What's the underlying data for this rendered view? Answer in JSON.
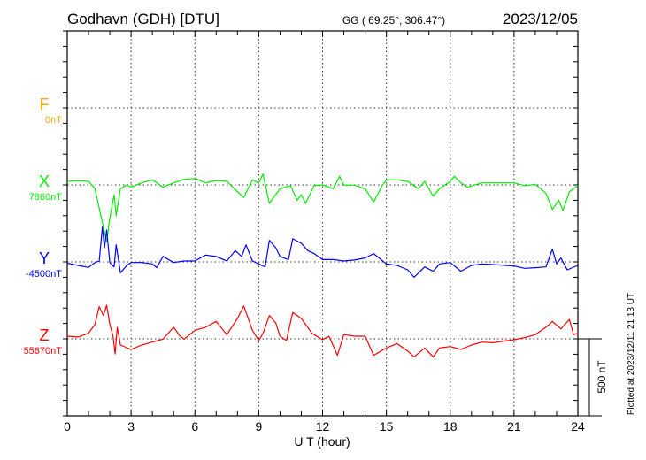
{
  "header": {
    "station": "Godhavn (GDH)  [DTU]",
    "coords": "GG ( 69.25°, 306.47°)",
    "date": "2023/12/05"
  },
  "footer": {
    "plotted": "Plotted at 2023/12/11 21:13 UT",
    "scale_label": "500 nT"
  },
  "chart_data": {
    "type": "line",
    "title": "Godhavn (GDH) [DTU] 2023/12/05",
    "xlabel": "U T (hour)",
    "xlim": [
      0,
      24
    ],
    "xticks": [
      "0",
      "3",
      "6",
      "9",
      "12",
      "15",
      "18",
      "21",
      "24"
    ],
    "grid": true,
    "nT_per_tick": 100,
    "scale_bar_nT": 500,
    "series": [
      {
        "name": "F",
        "baseline_label": "0nT",
        "color": "#ffaa00",
        "points": []
      },
      {
        "name": "X",
        "baseline_label": "7860nT",
        "color": "#00ee00",
        "points": [
          [
            0,
            23
          ],
          [
            0.5,
            27
          ],
          [
            1,
            23
          ],
          [
            1.3,
            -25
          ],
          [
            1.5,
            -150
          ],
          [
            1.7,
            -275
          ],
          [
            1.85,
            -370
          ],
          [
            2,
            -215
          ],
          [
            2.2,
            -63
          ],
          [
            2.3,
            -200
          ],
          [
            2.5,
            -25
          ],
          [
            2.8,
            0
          ],
          [
            3,
            -15
          ],
          [
            3.5,
            13
          ],
          [
            4,
            33
          ],
          [
            4.5,
            -15
          ],
          [
            5,
            13
          ],
          [
            5.5,
            36
          ],
          [
            6,
            42
          ],
          [
            6.5,
            13
          ],
          [
            7,
            29
          ],
          [
            7.5,
            23
          ],
          [
            8,
            -44
          ],
          [
            8.3,
            -82
          ],
          [
            8.7,
            33
          ],
          [
            9,
            13
          ],
          [
            9.2,
            71
          ],
          [
            9.5,
            -120
          ],
          [
            10,
            -25
          ],
          [
            10.5,
            -5
          ],
          [
            10.8,
            -100
          ],
          [
            11,
            -63
          ],
          [
            11.2,
            -120
          ],
          [
            11.6,
            -5
          ],
          [
            12,
            0
          ],
          [
            12.5,
            -25
          ],
          [
            12.8,
            56
          ],
          [
            13,
            -2
          ],
          [
            13.5,
            -2
          ],
          [
            14,
            -25
          ],
          [
            14.4,
            -111
          ],
          [
            14.8,
            -5
          ],
          [
            15,
            33
          ],
          [
            15.5,
            33
          ],
          [
            16,
            23
          ],
          [
            16.5,
            -25
          ],
          [
            16.8,
            23
          ],
          [
            17.2,
            -73
          ],
          [
            17.5,
            -25
          ],
          [
            18,
            23
          ],
          [
            18.2,
            56
          ],
          [
            18.5,
            13
          ],
          [
            18.8,
            -15
          ],
          [
            19.5,
            13
          ],
          [
            20,
            13
          ],
          [
            21,
            13
          ],
          [
            21.5,
            -5
          ],
          [
            22,
            4
          ],
          [
            22.5,
            -54
          ],
          [
            22.8,
            -160
          ],
          [
            23.1,
            -100
          ],
          [
            23.3,
            -167
          ],
          [
            23.6,
            -44
          ],
          [
            24,
            -5
          ]
        ]
      },
      {
        "name": "Y",
        "baseline_label": "-4500nT",
        "color": "#0000ff",
        "points": [
          [
            0,
            -8
          ],
          [
            0.5,
            -23
          ],
          [
            1,
            -36
          ],
          [
            1.3,
            -4
          ],
          [
            1.5,
            6
          ],
          [
            1.65,
            226
          ],
          [
            1.75,
            92
          ],
          [
            1.85,
            207
          ],
          [
            2,
            -4
          ],
          [
            2.2,
            -33
          ],
          [
            2.3,
            111
          ],
          [
            2.5,
            -71
          ],
          [
            2.8,
            -23
          ],
          [
            3,
            -4
          ],
          [
            3.5,
            -4
          ],
          [
            4,
            -13
          ],
          [
            4.2,
            -38
          ],
          [
            4.5,
            35
          ],
          [
            5,
            -4
          ],
          [
            5.5,
            6
          ],
          [
            6,
            6
          ],
          [
            6.5,
            44
          ],
          [
            7,
            35
          ],
          [
            7.5,
            6
          ],
          [
            7.9,
            73
          ],
          [
            8.2,
            35
          ],
          [
            8.4,
            111
          ],
          [
            8.7,
            6
          ],
          [
            9,
            -13
          ],
          [
            9.3,
            -33
          ],
          [
            9.5,
            140
          ],
          [
            9.8,
            92
          ],
          [
            10,
            35
          ],
          [
            10.4,
            15
          ],
          [
            10.6,
            150
          ],
          [
            11,
            121
          ],
          [
            11.3,
            73
          ],
          [
            11.6,
            54
          ],
          [
            12,
            15
          ],
          [
            12.5,
            15
          ],
          [
            13,
            6
          ],
          [
            13.5,
            12
          ],
          [
            14,
            25
          ],
          [
            14.4,
            54
          ],
          [
            15,
            -13
          ],
          [
            15.5,
            -23
          ],
          [
            16,
            -52
          ],
          [
            16.3,
            -100
          ],
          [
            16.8,
            -33
          ],
          [
            17.2,
            -61
          ],
          [
            17.5,
            -13
          ],
          [
            18,
            -4
          ],
          [
            18.5,
            -61
          ],
          [
            19,
            -23
          ],
          [
            19.5,
            -13
          ],
          [
            20,
            -17
          ],
          [
            21,
            -27
          ],
          [
            21.5,
            -42
          ],
          [
            22,
            -38
          ],
          [
            22.5,
            -33
          ],
          [
            22.8,
            82
          ],
          [
            23,
            -13
          ],
          [
            23.2,
            25
          ],
          [
            23.5,
            -52
          ],
          [
            24,
            -23
          ]
        ]
      },
      {
        "name": "Z",
        "baseline_label": "55670nT",
        "color": "#ff0000",
        "points": [
          [
            0,
            17
          ],
          [
            0.5,
            12
          ],
          [
            1,
            36
          ],
          [
            1.3,
            94
          ],
          [
            1.5,
            209
          ],
          [
            1.7,
            151
          ],
          [
            1.85,
            219
          ],
          [
            2,
            94
          ],
          [
            2.15,
            17
          ],
          [
            2.25,
            -98
          ],
          [
            2.35,
            75
          ],
          [
            2.5,
            -40
          ],
          [
            3,
            -69
          ],
          [
            3.5,
            -40
          ],
          [
            4,
            -21
          ],
          [
            4.5,
            -2
          ],
          [
            5,
            75
          ],
          [
            5.3,
            17
          ],
          [
            5.5,
            -2
          ],
          [
            6,
            56
          ],
          [
            6.5,
            75
          ],
          [
            7,
            113
          ],
          [
            7.5,
            27
          ],
          [
            8,
            132
          ],
          [
            8.3,
            213
          ],
          [
            8.7,
            56
          ],
          [
            9,
            -11
          ],
          [
            9.2,
            36
          ],
          [
            9.5,
            151
          ],
          [
            9.8,
            104
          ],
          [
            10,
            17
          ],
          [
            10.3,
            -11
          ],
          [
            10.6,
            171
          ],
          [
            11,
            132
          ],
          [
            11.5,
            36
          ],
          [
            12,
            -6
          ],
          [
            12.3,
            17
          ],
          [
            12.7,
            -107
          ],
          [
            13,
            27
          ],
          [
            13.5,
            17
          ],
          [
            14,
            17
          ],
          [
            14.4,
            -107
          ],
          [
            15,
            -60
          ],
          [
            15.5,
            -31
          ],
          [
            16,
            -79
          ],
          [
            16.3,
            -117
          ],
          [
            16.8,
            -60
          ],
          [
            17.2,
            -117
          ],
          [
            17.5,
            -60
          ],
          [
            18,
            -50
          ],
          [
            18.5,
            -69
          ],
          [
            19,
            -40
          ],
          [
            19.5,
            -21
          ],
          [
            20,
            -25
          ],
          [
            21,
            -6
          ],
          [
            21.5,
            8
          ],
          [
            22,
            27
          ],
          [
            22.5,
            75
          ],
          [
            22.8,
            113
          ],
          [
            23.2,
            65
          ],
          [
            23.6,
            126
          ],
          [
            23.8,
            27
          ],
          [
            24,
            36
          ]
        ]
      }
    ]
  }
}
